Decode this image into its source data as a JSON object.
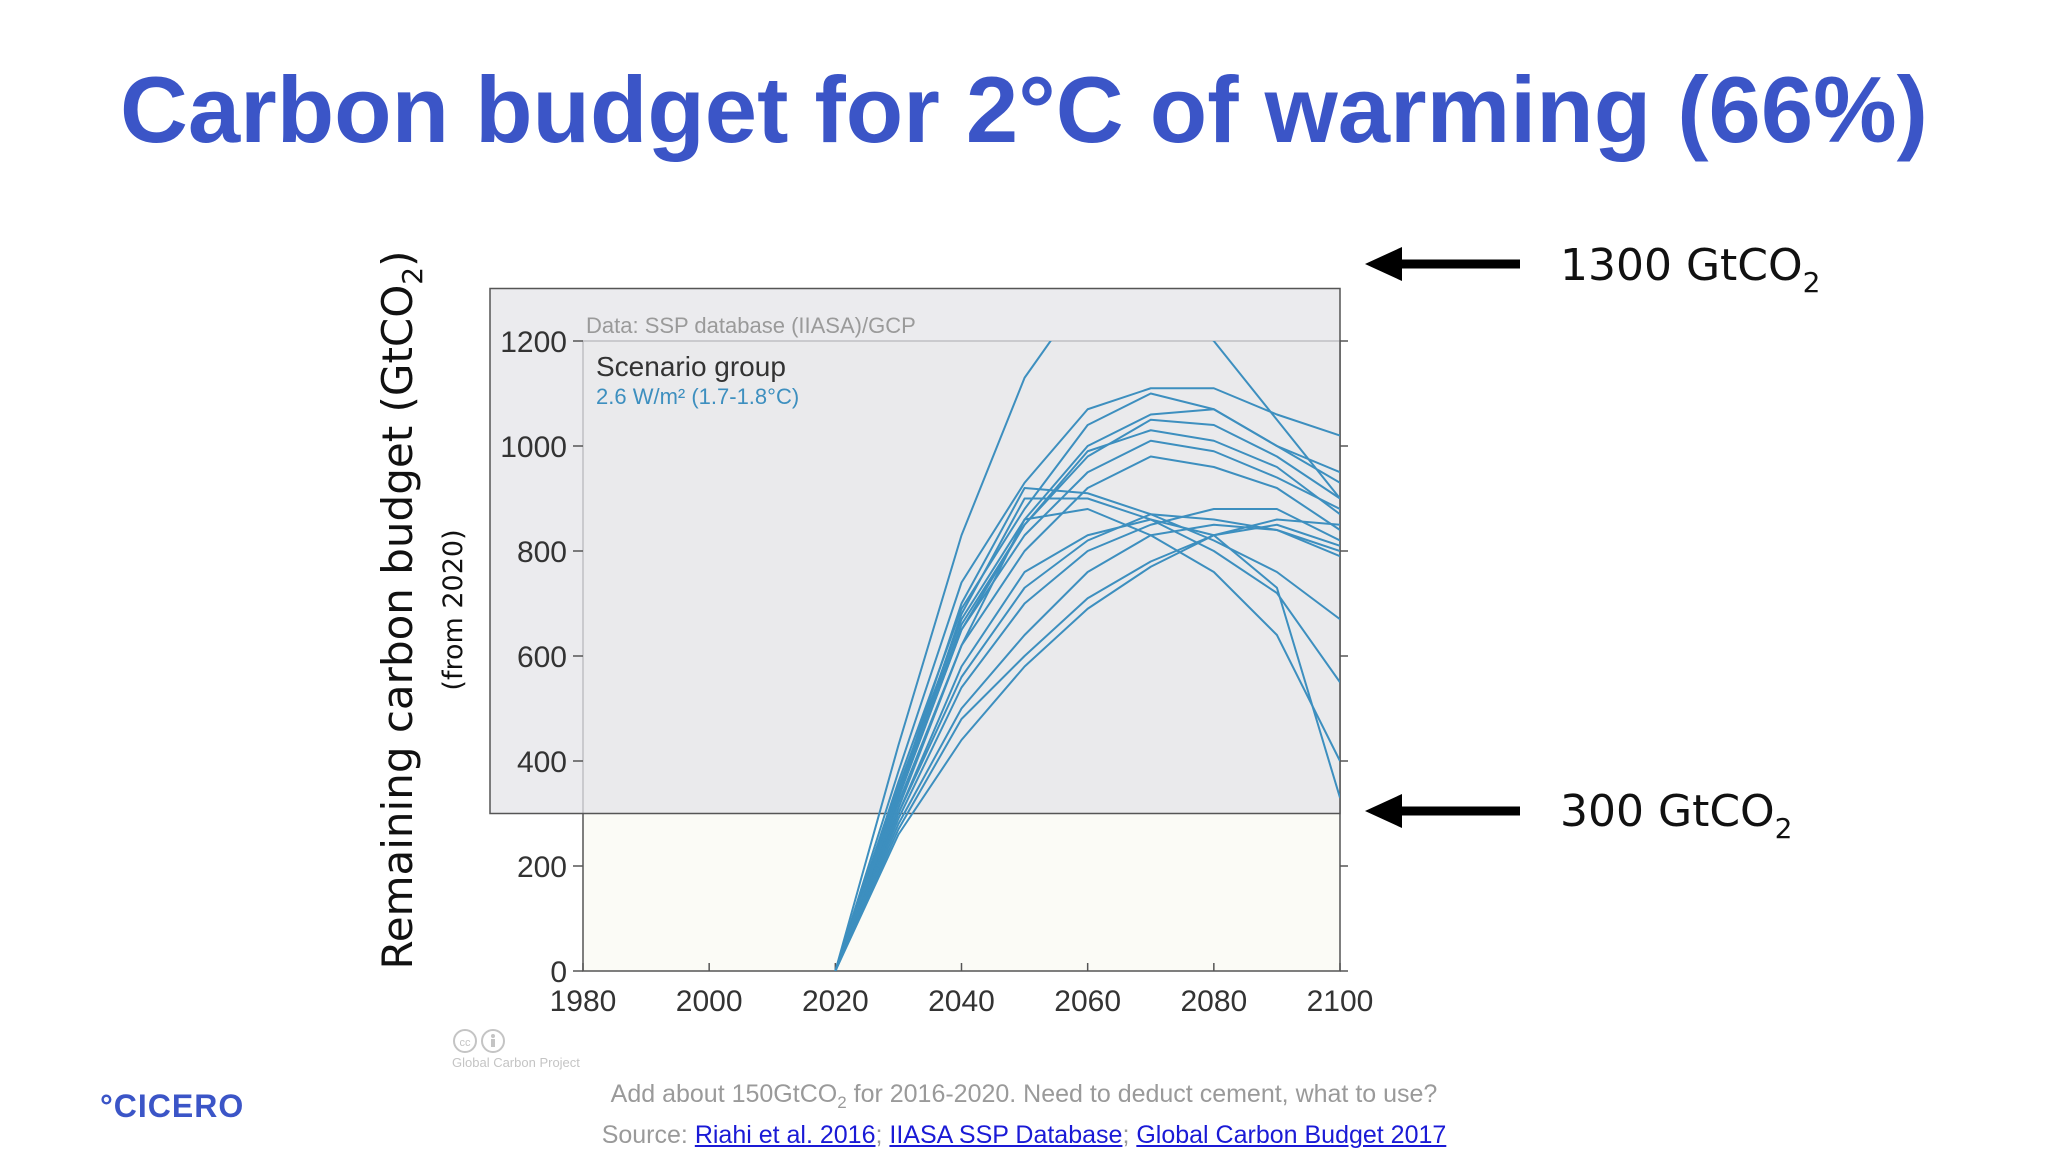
{
  "title": "Carbon budget for 2°C of warming (66%)",
  "footer": {
    "note_pre": "Add about 150GtCO",
    "note_sub": "2",
    "note_post": " for 2016-2020. Need to deduct cement, what to use?",
    "source_label": "Source: ",
    "sources": [
      "Riahi et al. 2016",
      "IIASA SSP Database",
      "Global Carbon Budget 2017"
    ],
    "sep": "; "
  },
  "logo": "°CICERO",
  "credit": "Global Carbon Project",
  "colors": {
    "title": "#3b55c7",
    "series": "#3d8fbf",
    "band": "#e8e8ec"
  },
  "chart_data": {
    "type": "line",
    "ylabel_main": "Remaining carbon budget (GtCO",
    "ylabel_sub": "2",
    "ylabel_close": ")",
    "ylabel_note": "(from 2020)",
    "data_note": "Data: SSP database (IIASA)/GCP",
    "legend_title": "Scenario group",
    "legend_item": "2.6 W/m² (1.7-1.8°C)",
    "xlim": [
      1980,
      2100
    ],
    "ylim": [
      0,
      1200
    ],
    "xticks": [
      1980,
      2000,
      2020,
      2040,
      2060,
      2080,
      2100
    ],
    "yticks": [
      0,
      200,
      400,
      600,
      800,
      1000,
      1200
    ],
    "x": [
      2020,
      2030,
      2040,
      2050,
      2060,
      2070,
      2080,
      2090,
      2100
    ],
    "series": [
      {
        "values": [
          0,
          430,
          830,
          1130,
          1300,
          1300,
          1200,
          1050,
          900
        ]
      },
      {
        "values": [
          0,
          380,
          740,
          930,
          1070,
          1110,
          1110,
          1060,
          1020
        ]
      },
      {
        "values": [
          0,
          360,
          690,
          880,
          1040,
          1100,
          1070,
          1000,
          950
        ]
      },
      {
        "values": [
          0,
          350,
          670,
          860,
          1000,
          1060,
          1070,
          1000,
          930
        ]
      },
      {
        "values": [
          0,
          340,
          660,
          850,
          980,
          1050,
          1040,
          980,
          900
        ]
      },
      {
        "values": [
          0,
          330,
          650,
          850,
          990,
          1030,
          1010,
          960,
          870
        ]
      },
      {
        "values": [
          0,
          330,
          650,
          830,
          950,
          1010,
          990,
          940,
          880
        ]
      },
      {
        "values": [
          0,
          320,
          620,
          800,
          920,
          980,
          960,
          920,
          840
        ]
      },
      {
        "values": [
          0,
          340,
          700,
          920,
          910,
          870,
          820,
          760,
          670
        ]
      },
      {
        "values": [
          0,
          330,
          680,
          900,
          900,
          860,
          800,
          720,
          550
        ]
      },
      {
        "values": [
          0,
          310,
          620,
          860,
          880,
          830,
          760,
          640,
          400
        ]
      },
      {
        "values": [
          0,
          300,
          580,
          760,
          830,
          860,
          830,
          730,
          330
        ]
      },
      {
        "values": [
          0,
          300,
          560,
          730,
          820,
          870,
          860,
          840,
          800
        ]
      },
      {
        "values": [
          0,
          290,
          540,
          700,
          800,
          850,
          880,
          880,
          820
        ]
      },
      {
        "values": [
          0,
          280,
          500,
          640,
          760,
          830,
          850,
          840,
          790
        ]
      },
      {
        "values": [
          0,
          270,
          480,
          600,
          710,
          780,
          830,
          850,
          810
        ]
      },
      {
        "values": [
          0,
          260,
          440,
          580,
          690,
          770,
          830,
          860,
          850
        ]
      }
    ],
    "annotations": [
      {
        "label_main": "1300 GtCO",
        "label_sub": "2",
        "y": 1300
      },
      {
        "label_main": "300 GtCO",
        "label_sub": "2",
        "y": 300
      }
    ]
  }
}
